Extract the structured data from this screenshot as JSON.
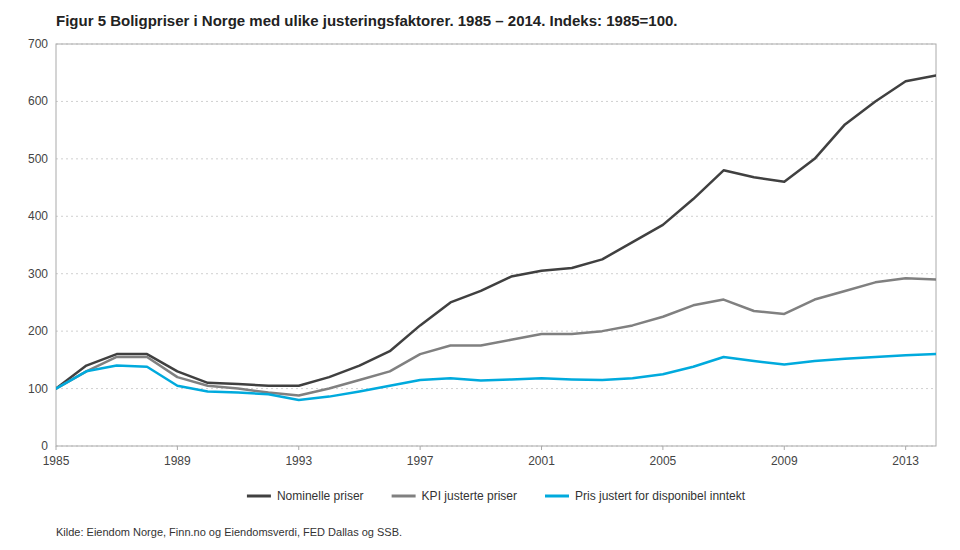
{
  "chart_data": {
    "type": "line",
    "title": "Figur 5 Boligpriser i Norge med ulike justeringsfaktorer. 1985 – 2014. Indeks: 1985=100.",
    "x": [
      1985,
      1986,
      1987,
      1988,
      1989,
      1990,
      1991,
      1992,
      1993,
      1994,
      1995,
      1996,
      1997,
      1998,
      1999,
      2000,
      2001,
      2002,
      2003,
      2004,
      2005,
      2006,
      2007,
      2008,
      2009,
      2010,
      2011,
      2012,
      2013,
      2014
    ],
    "series": [
      {
        "name": "Nominelle priser",
        "color": "#404040",
        "values": [
          100,
          140,
          160,
          160,
          130,
          110,
          108,
          105,
          105,
          120,
          140,
          165,
          210,
          250,
          270,
          295,
          305,
          310,
          325,
          355,
          385,
          430,
          480,
          468,
          460,
          500,
          560,
          600,
          635,
          645
        ]
      },
      {
        "name": "KPI justerte priser",
        "color": "#808080",
        "values": [
          100,
          130,
          155,
          155,
          120,
          105,
          100,
          93,
          88,
          100,
          115,
          130,
          160,
          175,
          175,
          185,
          195,
          195,
          200,
          210,
          225,
          245,
          255,
          235,
          230,
          255,
          270,
          285,
          292,
          290
        ]
      },
      {
        "name": "Pris justert for disponibel inntekt",
        "color": "#00AADD",
        "values": [
          100,
          130,
          140,
          138,
          105,
          95,
          93,
          90,
          80,
          86,
          95,
          105,
          115,
          118,
          114,
          116,
          118,
          116,
          115,
          118,
          125,
          138,
          155,
          148,
          142,
          148,
          152,
          155,
          158,
          160
        ]
      }
    ],
    "xlim": [
      1985,
      2014
    ],
    "xticks": [
      1985,
      1989,
      1993,
      1997,
      2001,
      2005,
      2009,
      2013
    ],
    "ylim": [
      0,
      700
    ],
    "yticks": [
      0,
      100,
      200,
      300,
      400,
      500,
      600,
      700
    ],
    "grid": "y",
    "legend": "bottom",
    "annotations": [
      "Kilde: Eiendom Norge, Finn.no og Eiendomsverdi, FED Dallas og SSB."
    ]
  }
}
